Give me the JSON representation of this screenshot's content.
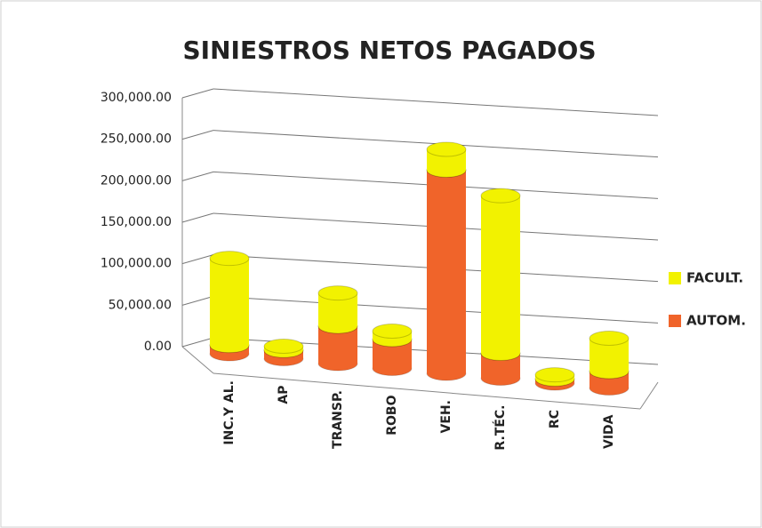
{
  "chart_data": {
    "type": "bar",
    "stacked": true,
    "title": "SINIESTROS NETOS PAGADOS",
    "categories": [
      "INC.Y AL.",
      "AP",
      "TRANSP.",
      "ROBO",
      "VEH.",
      "R.TÉC.",
      "RC",
      "VIDA"
    ],
    "series": [
      {
        "name": "FACULT.",
        "color": "#f2f200",
        "values": [
          105000,
          5000,
          40000,
          10000,
          25000,
          190000,
          5000,
          40000
        ]
      },
      {
        "name": "AUTOM.",
        "color": "#f0642a",
        "values": [
          10000,
          10000,
          45000,
          35000,
          245000,
          30000,
          5000,
          20000
        ]
      }
    ],
    "ylim": [
      0,
      300000
    ],
    "yticks": [
      {
        "value": 0,
        "label": "0.00"
      },
      {
        "value": 50000,
        "label": "50,000.00"
      },
      {
        "value": 100000,
        "label": "100,000.00"
      },
      {
        "value": 150000,
        "label": "150,000.00"
      },
      {
        "value": 200000,
        "label": "200,000.00"
      },
      {
        "value": 250000,
        "label": "250,000.00"
      },
      {
        "value": 300000,
        "label": "300,000.00"
      }
    ],
    "grid": true,
    "legend": "right"
  }
}
